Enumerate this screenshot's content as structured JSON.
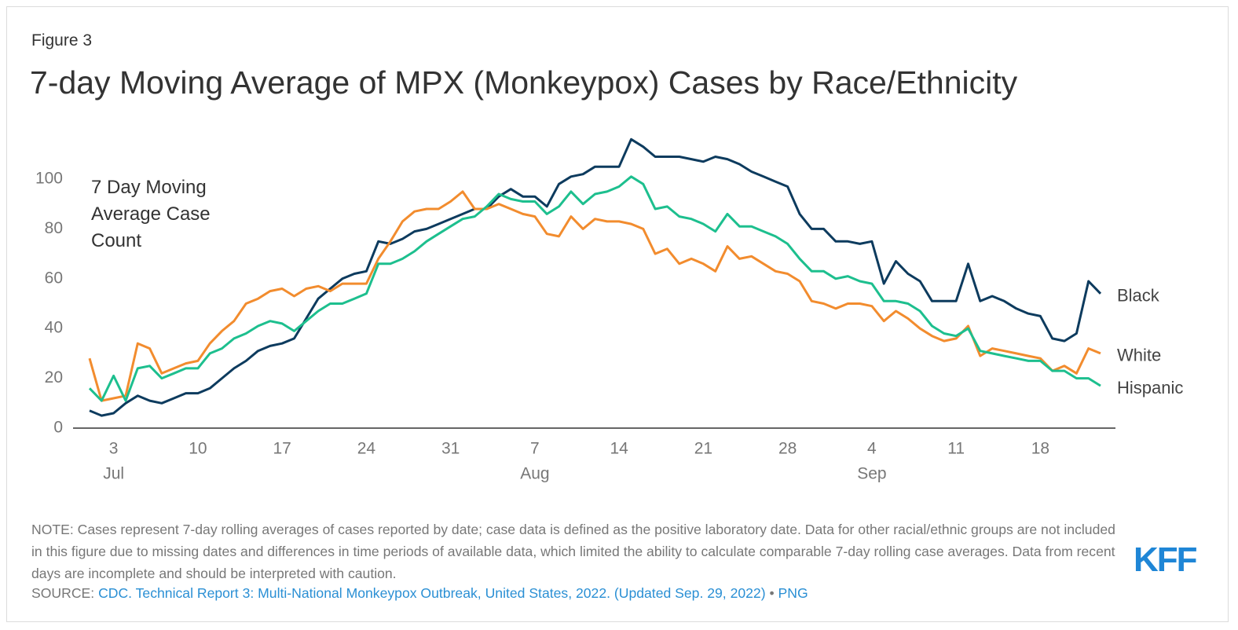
{
  "chart_data": {
    "type": "line",
    "figure_label": "Figure 3",
    "title": "7-day Moving Average of MPX (Monkeypox) Cases by Race/Ethnicity",
    "ylabel": "7 Day Moving Average Case Count",
    "x": [
      "07-01",
      "07-02",
      "07-03",
      "07-04",
      "07-05",
      "07-06",
      "07-07",
      "07-08",
      "07-09",
      "07-10",
      "07-11",
      "07-12",
      "07-13",
      "07-14",
      "07-15",
      "07-16",
      "07-17",
      "07-18",
      "07-19",
      "07-20",
      "07-21",
      "07-22",
      "07-23",
      "07-24",
      "07-25",
      "07-26",
      "07-27",
      "07-28",
      "07-29",
      "07-30",
      "07-31",
      "08-01",
      "08-02",
      "08-03",
      "08-04",
      "08-05",
      "08-06",
      "08-07",
      "08-08",
      "08-09",
      "08-10",
      "08-11",
      "08-12",
      "08-13",
      "08-14",
      "08-15",
      "08-16",
      "08-17",
      "08-18",
      "08-19",
      "08-20",
      "08-21",
      "08-22",
      "08-23",
      "08-24",
      "08-25",
      "08-26",
      "08-27",
      "08-28",
      "08-29",
      "08-30",
      "08-31",
      "09-01",
      "09-02",
      "09-03",
      "09-04",
      "09-05",
      "09-06",
      "09-07",
      "09-08",
      "09-09",
      "09-10",
      "09-11",
      "09-12",
      "09-13",
      "09-14",
      "09-15",
      "09-16",
      "09-17",
      "09-18",
      "09-19",
      "09-20",
      "09-21",
      "09-22",
      "09-23"
    ],
    "series": [
      {
        "name": "Black",
        "color": "#0d3b5e",
        "values": [
          7,
          5,
          6,
          10,
          13,
          11,
          10,
          12,
          14,
          14,
          16,
          20,
          24,
          27,
          31,
          33,
          34,
          36,
          44,
          52,
          56,
          60,
          62,
          63,
          75,
          74,
          76,
          79,
          80,
          82,
          84,
          86,
          88,
          88,
          93,
          96,
          93,
          93,
          89,
          98,
          101,
          102,
          105,
          105,
          105,
          116,
          113,
          109,
          109,
          109,
          108,
          107,
          109,
          108,
          106,
          103,
          101,
          99,
          97,
          86,
          80,
          80,
          75,
          75,
          74,
          75,
          58,
          67,
          62,
          59,
          51,
          51,
          51,
          66,
          51,
          53,
          51,
          48,
          46,
          45,
          36,
          35,
          38,
          59,
          54
        ]
      },
      {
        "name": "White",
        "color": "#f28c2e",
        "values": [
          28,
          11,
          12,
          13,
          34,
          32,
          22,
          24,
          26,
          27,
          34,
          39,
          43,
          50,
          52,
          55,
          56,
          53,
          56,
          57,
          55,
          58,
          58,
          58,
          68,
          75,
          83,
          87,
          88,
          88,
          91,
          95,
          88,
          88,
          90,
          88,
          86,
          85,
          78,
          77,
          85,
          80,
          84,
          83,
          83,
          82,
          80,
          70,
          72,
          66,
          68,
          66,
          63,
          73,
          68,
          69,
          66,
          63,
          62,
          59,
          51,
          50,
          48,
          50,
          50,
          49,
          43,
          47,
          44,
          40,
          37,
          35,
          36,
          41,
          29,
          32,
          31,
          30,
          29,
          28,
          23,
          25,
          22,
          32,
          30
        ]
      },
      {
        "name": "Hispanic",
        "color": "#1dbf8e",
        "values": [
          16,
          11,
          21,
          11,
          24,
          25,
          20,
          22,
          24,
          24,
          30,
          32,
          36,
          38,
          41,
          43,
          42,
          39,
          43,
          47,
          50,
          50,
          52,
          54,
          66,
          66,
          68,
          71,
          75,
          78,
          81,
          84,
          85,
          89,
          94,
          92,
          91,
          91,
          86,
          89,
          95,
          90,
          94,
          95,
          97,
          101,
          98,
          88,
          89,
          85,
          84,
          82,
          79,
          86,
          81,
          81,
          79,
          77,
          74,
          68,
          63,
          63,
          60,
          61,
          59,
          58,
          51,
          51,
          50,
          47,
          41,
          38,
          37,
          40,
          31,
          30,
          29,
          28,
          27,
          27,
          23,
          23,
          20,
          20,
          17
        ]
      }
    ],
    "xlim": [
      "07-01",
      "09-23"
    ],
    "xticks": [
      {
        "value": "07-03",
        "label": "3"
      },
      {
        "value": "07-10",
        "label": "10"
      },
      {
        "value": "07-17",
        "label": "17"
      },
      {
        "value": "07-24",
        "label": "24"
      },
      {
        "value": "07-31",
        "label": "31"
      },
      {
        "value": "08-07",
        "label": "7"
      },
      {
        "value": "08-14",
        "label": "14"
      },
      {
        "value": "08-21",
        "label": "21"
      },
      {
        "value": "08-28",
        "label": "28"
      },
      {
        "value": "09-04",
        "label": "4"
      },
      {
        "value": "09-11",
        "label": "11"
      },
      {
        "value": "09-18",
        "label": "18"
      }
    ],
    "xtick_months": [
      {
        "value": "07-03",
        "label": "Jul"
      },
      {
        "value": "08-07",
        "label": "Aug"
      },
      {
        "value": "09-04",
        "label": "Sep"
      }
    ],
    "ylim": [
      0,
      120
    ],
    "yticks": [
      0,
      20,
      40,
      60,
      80,
      100
    ],
    "grid": false,
    "note": "NOTE: Cases represent 7-day rolling averages of cases reported by date; case data is defined as the positive laboratory date. Data for other racial/ethnic groups are not included in this figure due to missing dates and differences in time periods of available data, which limited the ability to calculate comparable 7-day rolling case averages. Data from recent days are incomplete and should be interpreted with caution.",
    "source_label": "SOURCE:",
    "source_link": "CDC. Technical Report 3: Multi-National Monkeypox Outbreak, United States, 2022. (Updated Sep. 29, 2022)",
    "source_separator": "•",
    "source_format": "PNG",
    "logo": "KFF"
  }
}
